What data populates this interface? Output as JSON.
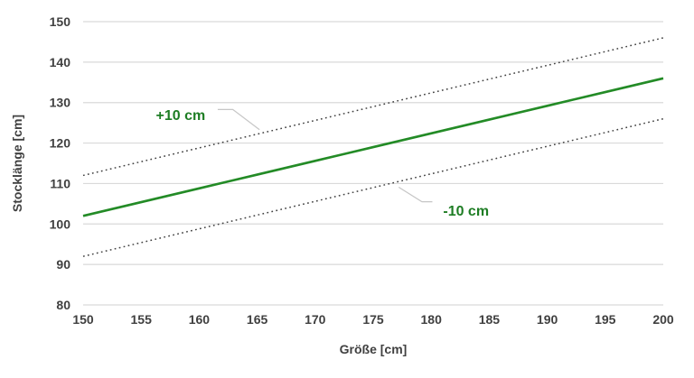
{
  "colors": {
    "series_green": "#238b26",
    "annotation_green": "#1e7d24",
    "text_gray": "#404040",
    "gridline_gray": "#d9d9d9",
    "dotted_gray": "#3f3f3f",
    "leader_gray": "#c6c6c6",
    "background": "#ffffff"
  },
  "chart_data": {
    "type": "line",
    "title": "",
    "xlabel": "Größe [cm]",
    "ylabel": "Stocklänge [cm]",
    "xlim": [
      150,
      200
    ],
    "ylim": [
      80,
      150
    ],
    "x_ticks": [
      150,
      155,
      160,
      165,
      170,
      175,
      180,
      185,
      190,
      195,
      200
    ],
    "y_ticks": [
      80,
      90,
      100,
      110,
      120,
      130,
      140,
      150
    ],
    "grid": "horizontal-only",
    "legend": "none",
    "categories_x": [
      150,
      155,
      160,
      165,
      170,
      175,
      180,
      185,
      190,
      195,
      200
    ],
    "series": [
      {
        "id": "main-line",
        "style": "solid",
        "values": [
          102,
          105.4,
          108.8,
          112.2,
          115.6,
          119,
          122.4,
          125.8,
          129.2,
          132.6,
          136
        ]
      },
      {
        "id": "upper-band-line",
        "style": "dotted",
        "values": [
          112,
          115.4,
          118.8,
          122.2,
          125.6,
          129,
          132.4,
          135.8,
          139.2,
          142.6,
          146
        ]
      },
      {
        "id": "lower-band-line",
        "style": "dotted",
        "values": [
          92,
          95.4,
          98.8,
          102.2,
          105.6,
          109,
          112.4,
          115.8,
          119.2,
          122.6,
          126
        ]
      }
    ],
    "annotations": [
      {
        "id": "annotation-plus10",
        "label": "+10 cm",
        "x": 158.4,
        "y": 127.0,
        "leader": [
          [
            161.6,
            128.3
          ],
          [
            162.9,
            128.3
          ],
          [
            165.2,
            123.3
          ]
        ]
      },
      {
        "id": "annotation-minus10",
        "label": "-10 cm",
        "x": 183.0,
        "y": 103.4,
        "leader": [
          [
            177.2,
            109.1
          ],
          [
            179.2,
            105.5
          ],
          [
            180.1,
            105.5
          ]
        ]
      }
    ]
  }
}
